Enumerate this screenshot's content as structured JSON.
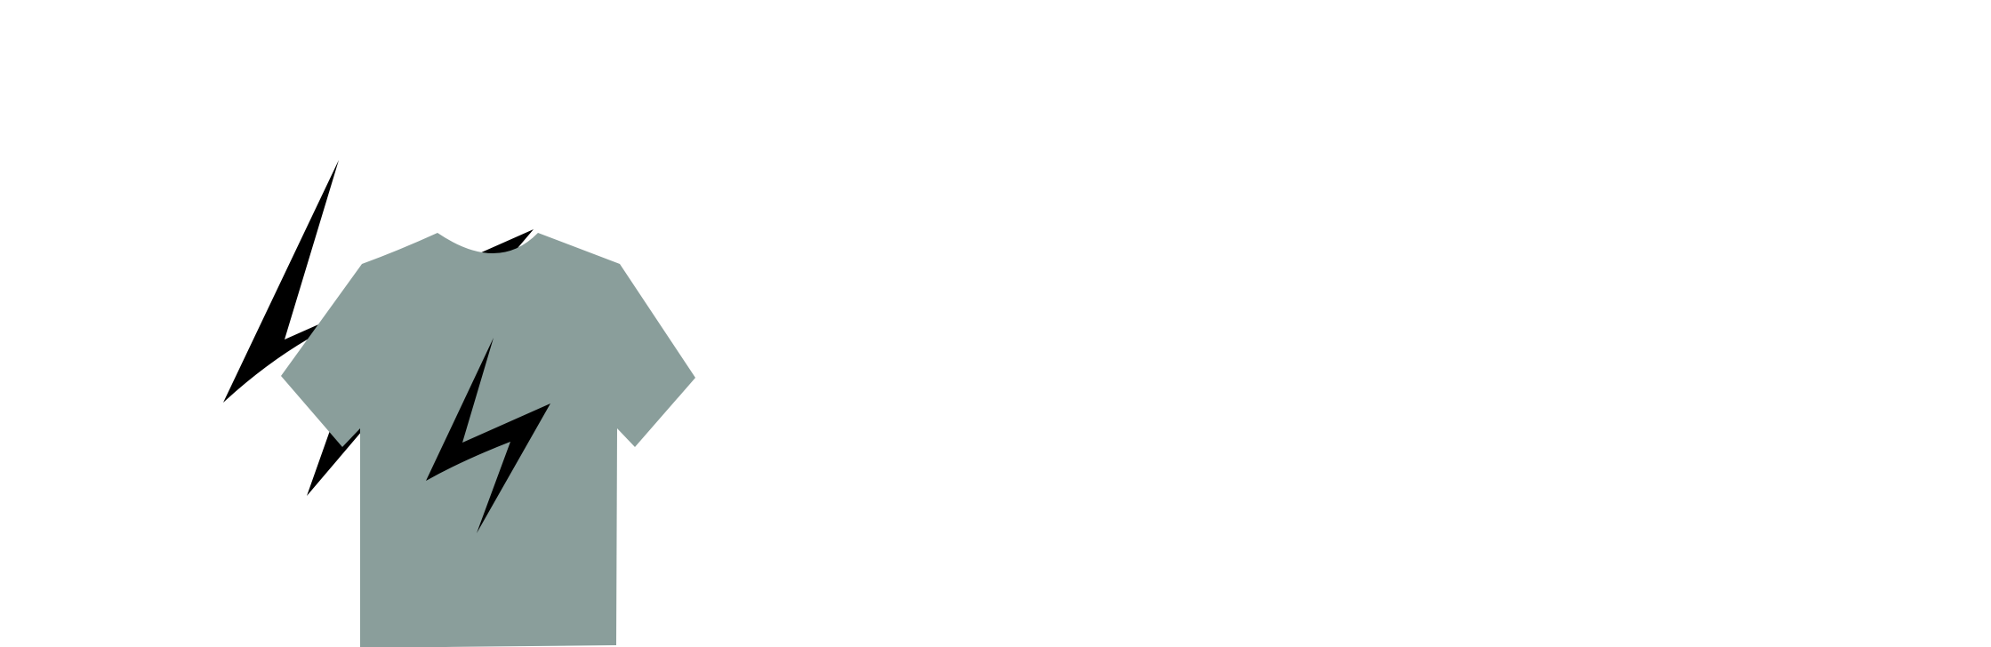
{
  "illustration": {
    "subject": "t-shirt-with-lightning-bolts",
    "icons": [
      "large-lightning-bolt-icon",
      "t-shirt-icon",
      "shirt-lightning-bolt-icon"
    ],
    "colors": {
      "background": "#ffffff",
      "shirt": "#8a9e9b",
      "bolt": "#000000"
    }
  }
}
